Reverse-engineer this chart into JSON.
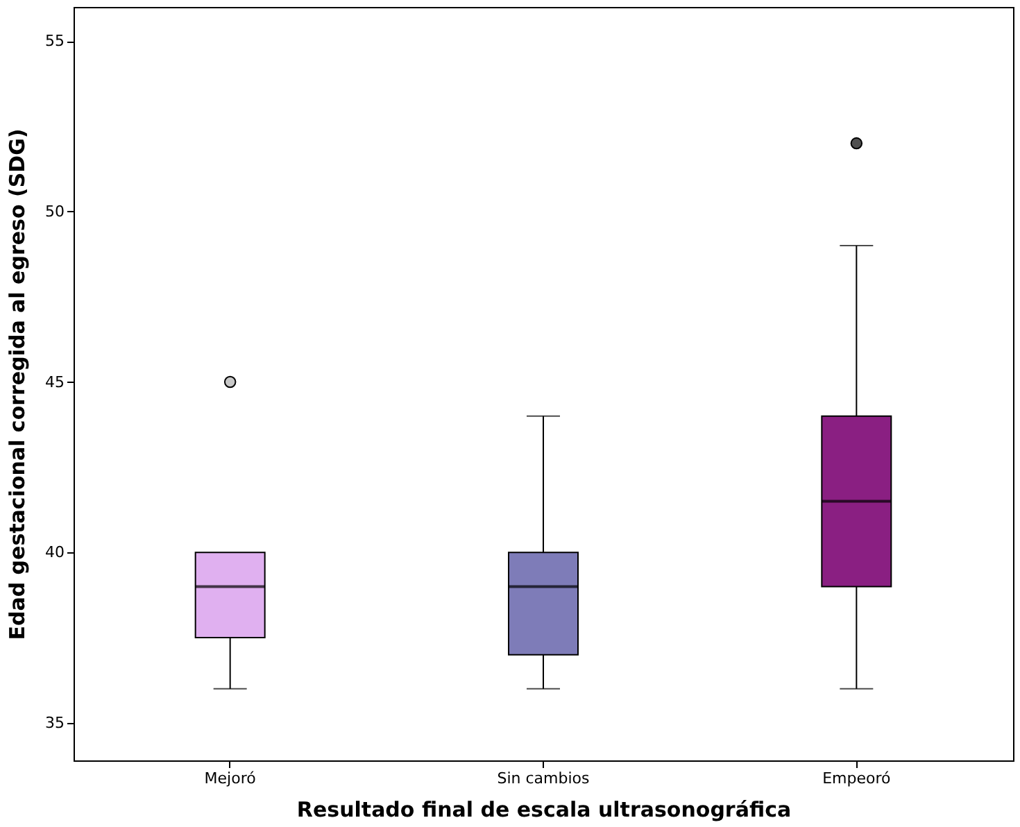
{
  "chart_data": {
    "type": "box",
    "xlabel": "Resultado final de escala ultrasonográfica",
    "ylabel": "Edad gestacional corregida al egreso (SDG)",
    "categories": [
      "Mejoró",
      "Sin cambios",
      "Empeoró"
    ],
    "colors": [
      "#e0b0f0",
      "#7e7cb8",
      "#8a1f82"
    ],
    "boxes": [
      {
        "low": 36,
        "q1": 37.5,
        "median": 39,
        "q3": 40,
        "high": 40,
        "outliers": [
          45
        ]
      },
      {
        "low": 36,
        "q1": 37,
        "median": 39,
        "q3": 40,
        "high": 44
      },
      {
        "low": 36,
        "q1": 39,
        "median": 41.5,
        "q3": 44,
        "high": 49,
        "outliers": [
          52
        ]
      }
    ],
    "ylim": [
      33.9,
      56
    ],
    "yticks": [
      35,
      40,
      45,
      50,
      55
    ],
    "grid": false
  }
}
